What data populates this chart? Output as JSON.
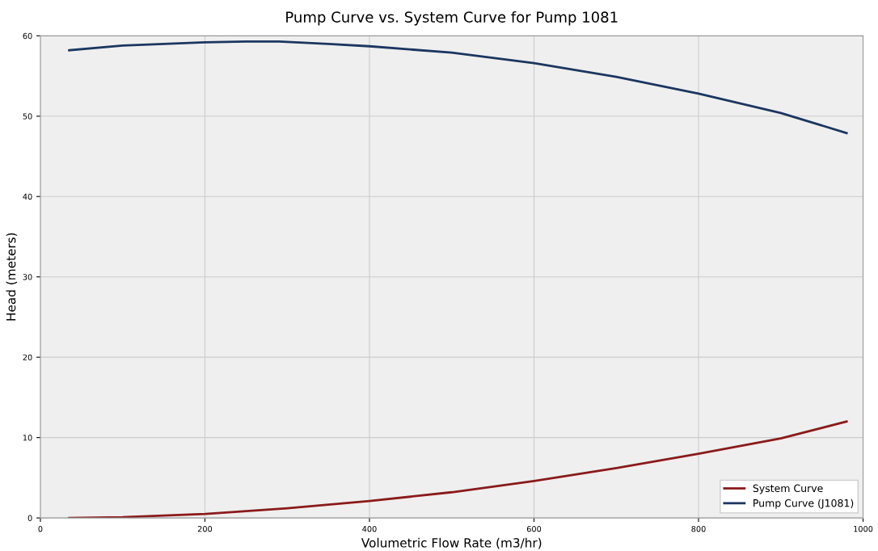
{
  "chart_data": {
    "type": "line",
    "title": "Pump Curve vs. System Curve for Pump 1081",
    "xlabel": "Volumetric Flow Rate (m3/hr)",
    "ylabel": "Head (meters)",
    "series": [
      {
        "name": "System Curve",
        "color": "#8b1a1a",
        "x": [
          35,
          100,
          200,
          300,
          400,
          500,
          600,
          700,
          800,
          900,
          980
        ],
        "values": [
          0,
          0.1,
          0.5,
          1.2,
          2.1,
          3.2,
          4.6,
          6.2,
          8.0,
          9.9,
          12.0
        ]
      },
      {
        "name": "Pump Curve (J1081)",
        "color": "#1c3660",
        "x": [
          35,
          100,
          200,
          250,
          290,
          350,
          400,
          500,
          600,
          700,
          800,
          900,
          980
        ],
        "values": [
          58.2,
          58.8,
          59.2,
          59.3,
          59.3,
          59.0,
          58.7,
          57.9,
          56.6,
          54.9,
          52.8,
          50.4,
          47.9
        ]
      }
    ],
    "xlim": [
      0,
      1000
    ],
    "ylim": [
      0,
      60
    ],
    "xticks": [
      0,
      200,
      400,
      600,
      800,
      1000
    ],
    "yticks": [
      0,
      10,
      20,
      30,
      40,
      50,
      60
    ],
    "grid": true,
    "legend": "bottom right"
  }
}
